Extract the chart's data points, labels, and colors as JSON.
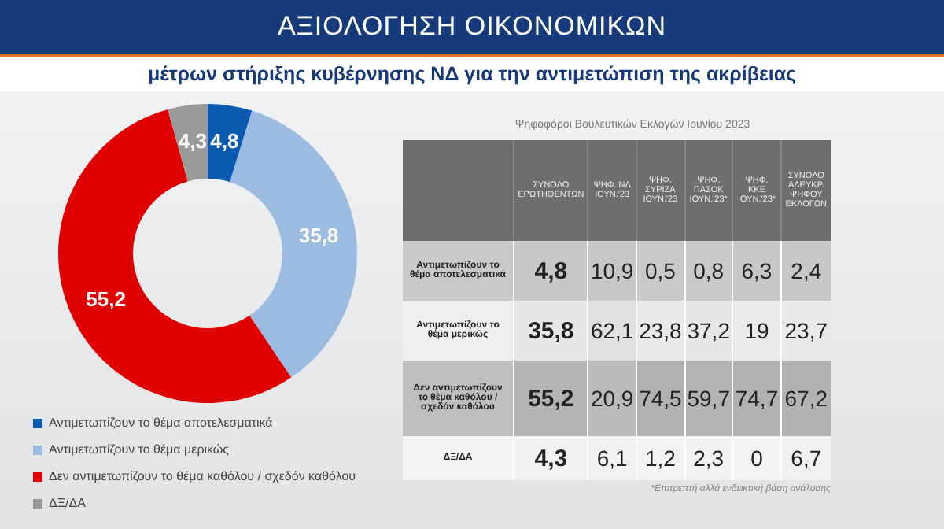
{
  "chart_data": [
    {
      "type": "donut",
      "title": "ΑΞΙΟΛΟΓΗΣΗ ΟΙΚΟΝΟΜΙΚΩΝ",
      "subtitle": "μέτρων στήριξης κυβέρνησης ΝΔ για την αντιμετώπιση της ακρίβειας",
      "categories": [
        "Αντιμετωπίζουν το θέμα αποτελεσματικά",
        "Αντιμετωπίζουν το θέμα μερικώς",
        "Δεν αντιμετωπίζουν το θέμα καθόλου / σχεδόν καθόλου",
        "ΔΞ/ΔΑ"
      ],
      "values": [
        4.8,
        35.8,
        55.2,
        4.3
      ],
      "value_labels": [
        "4,8",
        "35,8",
        "55,2",
        "4,3"
      ],
      "colors": [
        "#0a5ab0",
        "#9bbce0",
        "#e00000",
        "#9a9a9a"
      ],
      "legend": "bottom"
    },
    {
      "type": "heatmap",
      "title": "Ψηφοφόροι Βουλευτικών Εκλογών Ιουνίου 2023",
      "categories": [
        "ΣΥΝΟΛΟ ΕΡΩΤΗΘΕΝΤΩΝ",
        "ΨΗΦ. ΝΔ ΙΟΥΝ.'23",
        "ΨΗΦ. ΣΥΡΙΖΑ ΙΟΥΝ.'23",
        "ΨΗΦ. ΠΑΣΟΚ ΙΟΥΝ.'23*",
        "ΨΗΦ. ΚΚΕ ΙΟΥΝ.'23*",
        "ΣΥΝΟΛΟ ΑΔΕΥΚΡ. ΨΗΦΟΥ ΕΚΛΟΓΩΝ"
      ],
      "y_categories": [
        "Αντιμετωπίζουν το θέμα αποτελεσματικά",
        "Αντιμετωπίζουν το θέμα μερικώς",
        "Δεν αντιμετωπίζουν το θέμα καθόλου / σχεδόν καθόλου",
        "ΔΞ/ΔΑ"
      ],
      "cells": [
        [
          4.8,
          10.9,
          0.5,
          0.8,
          6.3,
          2.4
        ],
        [
          35.8,
          62.1,
          23.8,
          37.2,
          19,
          23.7
        ],
        [
          55.2,
          20.9,
          74.5,
          59.7,
          74.7,
          67.2
        ],
        [
          4.3,
          6.1,
          1.2,
          2.3,
          0,
          6.7
        ]
      ],
      "cell_labels": [
        [
          "4,8",
          "10,9",
          "0,5",
          "0,8",
          "6,3",
          "2,4"
        ],
        [
          "35,8",
          "62,1",
          "23,8",
          "37,2",
          "19",
          "23,7"
        ],
        [
          "55,2",
          "20,9",
          "74,5",
          "59,7",
          "74,7",
          "67,2"
        ],
        [
          "4,3",
          "6,1",
          "1,2",
          "2,3",
          "0",
          "6,7"
        ]
      ],
      "annotations": [
        "*Επιτρεπτή αλλά ενδεικτική βάση ανάλυσης"
      ]
    }
  ]
}
